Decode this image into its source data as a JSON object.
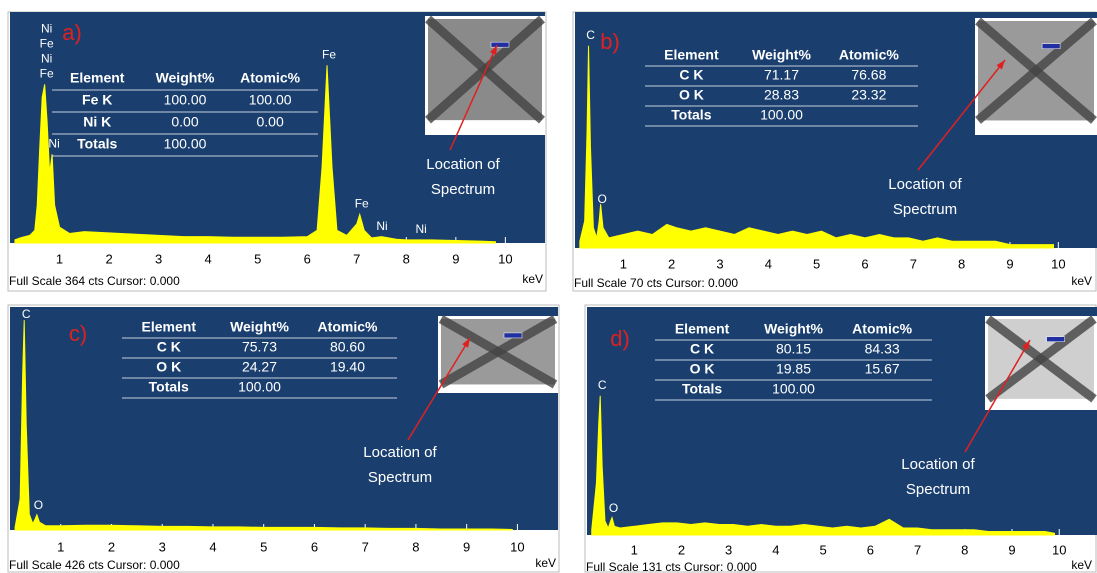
{
  "chart_data": [
    {
      "type": "area",
      "panel_label": "a)",
      "color": "#ffff00",
      "x": [
        0.1,
        0.2,
        0.3,
        0.4,
        0.5,
        0.55,
        0.6,
        0.65,
        0.7,
        0.75,
        0.8,
        0.85,
        0.9,
        1.0,
        1.2,
        1.5,
        2,
        2.5,
        3,
        3.5,
        4,
        4.5,
        5,
        5.5,
        6,
        6.2,
        6.3,
        6.4,
        6.5,
        6.6,
        6.8,
        7.0,
        7.06,
        7.15,
        7.3,
        7.5,
        7.8,
        8.0,
        8.3,
        8.5,
        9,
        9.5,
        9.8
      ],
      "values": [
        5,
        8,
        10,
        12,
        20,
        60,
        150,
        230,
        250,
        190,
        110,
        140,
        60,
        25,
        15,
        18,
        16,
        14,
        12,
        10,
        10,
        9,
        9,
        9,
        10,
        20,
        120,
        280,
        120,
        20,
        12,
        30,
        45,
        20,
        8,
        10,
        6,
        5,
        5,
        5,
        4,
        3,
        2
      ],
      "xlim": [
        0,
        10.8
      ],
      "ylim": [
        0,
        364
      ],
      "xticks": [
        1,
        2,
        3,
        4,
        5,
        6,
        7,
        8,
        9,
        10
      ],
      "xlabel": "keV",
      "footer": "Full Scale 364 cts Cursor: 0.000",
      "peak_labels": [
        {
          "text": "Ni",
          "x": 0.7
        },
        {
          "text": "Fe",
          "x": 0.7
        },
        {
          "text": "Ni",
          "x": 0.7
        },
        {
          "text": "Fe",
          "x": 0.7
        },
        {
          "text": "Ni",
          "x": 0.85
        },
        {
          "text": "Fe",
          "x": 6.4
        },
        {
          "text": "Fe",
          "x": 7.06
        },
        {
          "text": "Ni",
          "x": 7.47
        },
        {
          "text": "Ni",
          "x": 8.26
        }
      ],
      "table": {
        "header": [
          "Element",
          "Weight%",
          "Atomic%"
        ],
        "rows": [
          [
            "Fe K",
            "100.00",
            "100.00"
          ],
          [
            "Ni K",
            "0.00",
            "0.00"
          ],
          [
            "Totals",
            "100.00"
          ]
        ]
      },
      "annotation": [
        "Location of",
        "Spectrum"
      ]
    },
    {
      "type": "area",
      "panel_label": "b)",
      "color": "#ffff00",
      "x": [
        0.1,
        0.2,
        0.25,
        0.28,
        0.32,
        0.38,
        0.45,
        0.5,
        0.53,
        0.58,
        0.7,
        1,
        1.3,
        1.6,
        1.9,
        2.1,
        2.4,
        2.7,
        3,
        3.3,
        3.6,
        3.9,
        4.2,
        4.5,
        4.8,
        5.1,
        5.4,
        5.7,
        6,
        6.3,
        6.6,
        6.9,
        7.2,
        7.5,
        7.8,
        8.1,
        8.4,
        8.7,
        9,
        9.3,
        9.6,
        9.9
      ],
      "values": [
        2,
        8,
        35,
        60,
        30,
        6,
        3,
        8,
        13,
        6,
        3,
        4,
        5,
        4,
        7,
        6,
        5,
        6,
        5,
        4,
        6,
        5,
        4,
        5,
        4,
        5,
        3,
        4,
        3,
        4,
        3,
        3,
        2,
        3,
        2,
        2,
        2,
        2,
        1,
        1,
        1,
        1
      ],
      "xlim": [
        0,
        10.8
      ],
      "ylim": [
        0,
        70
      ],
      "xticks": [
        1,
        2,
        3,
        4,
        5,
        6,
        7,
        8,
        9,
        10
      ],
      "xlabel": "keV",
      "footer": "Full Scale 70 cts Cursor: 0.000",
      "peak_labels": [
        {
          "text": "C",
          "x": 0.28
        },
        {
          "text": "O",
          "x": 0.52
        }
      ],
      "table": {
        "header": [
          "Element",
          "Weight%",
          "Atomic%"
        ],
        "rows": [
          [
            "C K",
            "71.17",
            "76.68"
          ],
          [
            "O K",
            "28.83",
            "23.32"
          ],
          [
            "Totals",
            "100.00"
          ]
        ]
      },
      "annotation": [
        "Location of",
        "Spectrum"
      ]
    },
    {
      "type": "area",
      "panel_label": "c)",
      "color": "#ffff00",
      "x": [
        0.1,
        0.2,
        0.25,
        0.28,
        0.32,
        0.38,
        0.45,
        0.5,
        0.53,
        0.58,
        0.7,
        1,
        1.5,
        2,
        2.5,
        3,
        3.5,
        4,
        4.5,
        5,
        5.5,
        6,
        6.5,
        7,
        7.5,
        8,
        8.5,
        9,
        9.5,
        9.9
      ],
      "values": [
        5,
        60,
        300,
        401,
        200,
        30,
        12,
        22,
        29,
        15,
        8,
        8,
        9,
        9,
        8,
        7,
        7,
        6,
        6,
        5,
        5,
        5,
        4,
        4,
        3,
        3,
        2,
        2,
        2,
        1
      ],
      "xlim": [
        0,
        10.8
      ],
      "ylim": [
        0,
        426
      ],
      "xticks": [
        1,
        2,
        3,
        4,
        5,
        6,
        7,
        8,
        9,
        10
      ],
      "xlabel": "keV",
      "footer": "Full Scale 426 cts Cursor: 0.000",
      "peak_labels": [
        {
          "text": "C",
          "x": 0.28
        },
        {
          "text": "O",
          "x": 0.52
        }
      ],
      "table": {
        "header": [
          "Element",
          "Weight%",
          "Atomic%"
        ],
        "rows": [
          [
            "C K",
            "75.73",
            "80.60"
          ],
          [
            "O K",
            "24.27",
            "19.40"
          ],
          [
            "Totals",
            "100.00"
          ]
        ]
      },
      "annotation": [
        "Location of",
        "Spectrum"
      ]
    },
    {
      "type": "area",
      "panel_label": "d)",
      "color": "#ffff00",
      "x": [
        0.1,
        0.2,
        0.25,
        0.28,
        0.32,
        0.38,
        0.45,
        0.5,
        0.53,
        0.58,
        0.7,
        1,
        1.3,
        1.6,
        1.9,
        2.2,
        2.5,
        2.8,
        3.1,
        3.4,
        3.7,
        4,
        4.3,
        4.6,
        4.9,
        5.2,
        5.5,
        5.8,
        6.1,
        6.4,
        6.7,
        7,
        7.3,
        7.6,
        7.9,
        8.2,
        8.5,
        8.8,
        9.1,
        9.4,
        9.7,
        9.9
      ],
      "values": [
        3,
        30,
        65,
        80,
        40,
        8,
        4,
        8,
        10,
        5,
        4,
        5,
        6,
        7,
        7,
        6,
        7,
        6,
        6,
        5,
        6,
        5,
        5,
        6,
        5,
        4,
        5,
        4,
        5,
        9,
        4,
        4,
        3,
        3,
        3,
        3,
        2,
        2,
        2,
        2,
        2,
        1
      ],
      "xlim": [
        0,
        10.8
      ],
      "ylim": [
        0,
        131
      ],
      "xticks": [
        1,
        2,
        3,
        4,
        5,
        6,
        7,
        8,
        9,
        10
      ],
      "xlabel": "keV",
      "footer": "Full Scale 131 cts Cursor: 0.000",
      "peak_labels": [
        {
          "text": "C",
          "x": 0.28
        },
        {
          "text": "O",
          "x": 0.52
        }
      ],
      "table": {
        "header": [
          "Element",
          "Weight%",
          "Atomic%"
        ],
        "rows": [
          [
            "C K",
            "80.15",
            "84.33"
          ],
          [
            "O K",
            "19.85",
            "15.67"
          ],
          [
            "Totals",
            "100.00"
          ]
        ]
      },
      "annotation": [
        "Location of",
        "Spectrum"
      ]
    }
  ]
}
